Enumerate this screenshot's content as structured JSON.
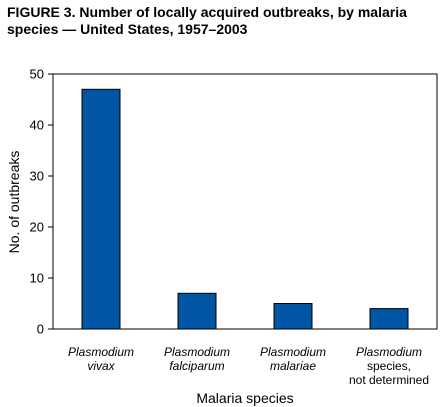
{
  "title": "FIGURE 3. Number of locally acquired outbreaks, by malaria species — United States, 1957–2003",
  "chart_data": {
    "type": "bar",
    "title": "FIGURE 3. Number of locally acquired outbreaks, by malaria species — United States, 1957–2003",
    "xlabel": "Malaria species",
    "ylabel": "No. of outbreaks",
    "ylim": [
      0,
      50
    ],
    "yticks": [
      0,
      10,
      20,
      30,
      40,
      50
    ],
    "grid": false,
    "categories": [
      [
        "Plasmodium",
        "vivax"
      ],
      [
        "Plasmodium",
        "falciparum"
      ],
      [
        "Plasmodium",
        "malariae"
      ],
      [
        "Plasmodium",
        "species,",
        "not determined"
      ]
    ],
    "category_italic_lines": [
      2,
      2,
      2,
      1
    ],
    "values": [
      47,
      7,
      5,
      4
    ],
    "bar_color": "#0055a5",
    "bar_stroke": "#000000"
  }
}
